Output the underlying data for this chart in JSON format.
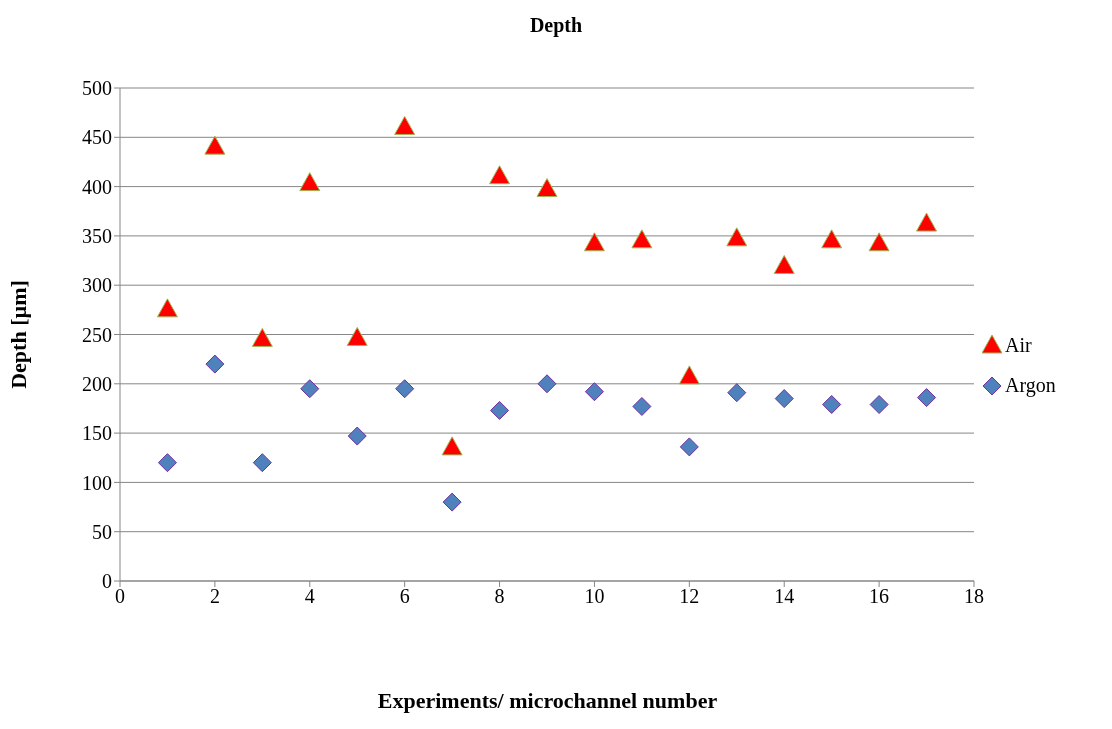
{
  "chart_data": {
    "type": "scatter",
    "title": "Depth",
    "xlabel": "Experiments/ microchannel number",
    "ylabel": "Depth  [µm]",
    "x": [
      1,
      2,
      3,
      4,
      5,
      6,
      7,
      8,
      9,
      10,
      11,
      12,
      13,
      14,
      15,
      16,
      17
    ],
    "series": [
      {
        "name": "Air",
        "color": "#ff0000",
        "marker": "triangle",
        "values": [
          275,
          440,
          245,
          403,
          246,
          460,
          135,
          410,
          397,
          342,
          345,
          207,
          347,
          319,
          345,
          342,
          362
        ]
      },
      {
        "name": "Argon",
        "color": "#4f81bd",
        "marker": "diamond",
        "values": [
          120,
          220,
          120,
          195,
          147,
          195,
          80,
          173,
          200,
          192,
          177,
          136,
          191,
          185,
          179,
          179,
          186
        ]
      }
    ],
    "xlim": [
      0,
      18
    ],
    "xticks": [
      0,
      2,
      4,
      6,
      8,
      10,
      12,
      14,
      16,
      18
    ],
    "ylim": [
      0,
      500
    ],
    "yticks": [
      0,
      50,
      100,
      150,
      200,
      250,
      300,
      350,
      400,
      450,
      500
    ],
    "grid": "y",
    "legend": "right"
  }
}
